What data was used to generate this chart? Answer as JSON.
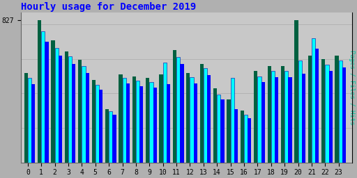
{
  "title": "Hourly usage for December 2019",
  "ylabel_right": "Pages / Files / Hits",
  "hours": [
    0,
    1,
    2,
    3,
    4,
    5,
    6,
    7,
    8,
    9,
    10,
    11,
    12,
    13,
    14,
    15,
    16,
    17,
    18,
    19,
    20,
    21,
    22,
    23
  ],
  "pages": [
    520,
    827,
    710,
    645,
    595,
    480,
    310,
    510,
    500,
    490,
    510,
    650,
    520,
    570,
    430,
    365,
    300,
    530,
    560,
    560,
    827,
    620,
    600,
    620
  ],
  "files": [
    490,
    760,
    665,
    615,
    560,
    450,
    295,
    490,
    475,
    468,
    580,
    610,
    495,
    545,
    395,
    490,
    278,
    500,
    530,
    530,
    590,
    720,
    568,
    590
  ],
  "hits": [
    455,
    700,
    620,
    570,
    520,
    420,
    275,
    460,
    440,
    435,
    455,
    570,
    460,
    505,
    365,
    310,
    258,
    465,
    495,
    495,
    515,
    660,
    530,
    550
  ],
  "pages_color": "#006040",
  "files_color": "#00ffff",
  "hits_color": "#0000ff",
  "background_plot": "#c8c8c8",
  "background_fig": "#b0b0b0",
  "title_color": "#0000ff",
  "ylabel_color": "#00c8a0",
  "tick_color": "#000000",
  "ylim": [
    0,
    870
  ],
  "yticks": [
    827
  ],
  "bar_width": 0.27,
  "title_fontsize": 10,
  "tick_fontsize": 7
}
